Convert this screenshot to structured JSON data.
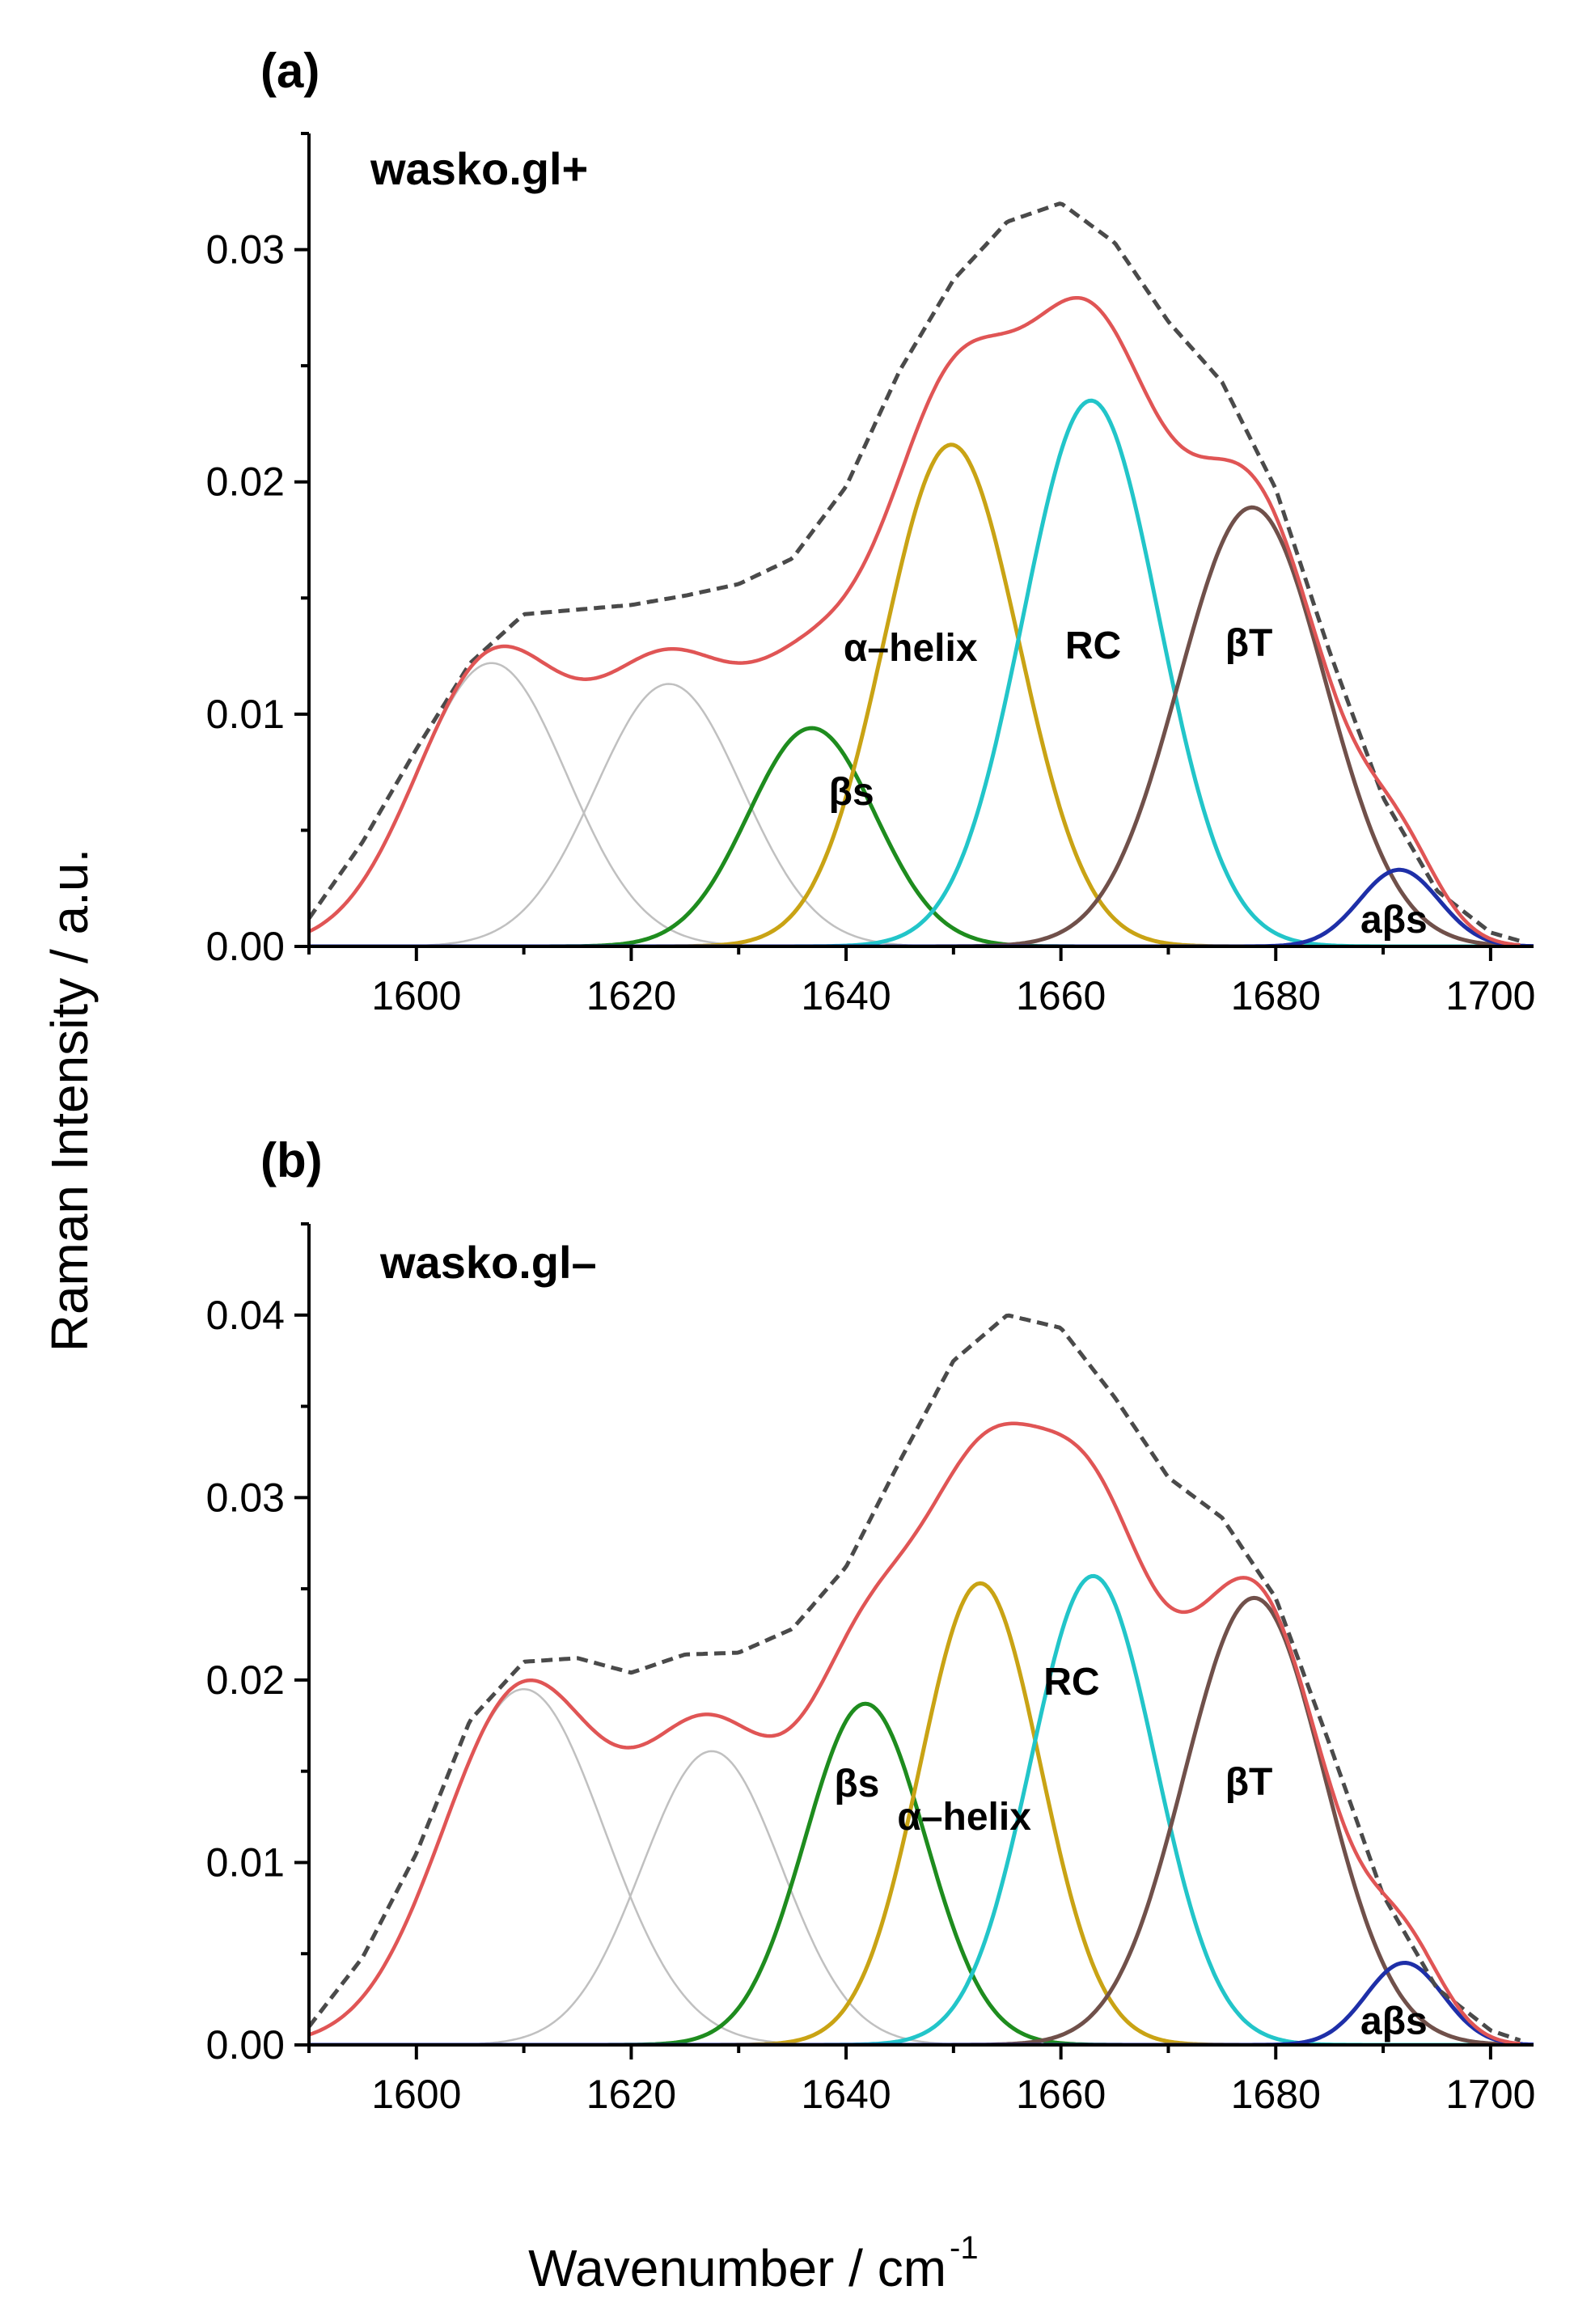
{
  "figure": {
    "ylabel": "Raman Intensity / a.u.",
    "xlabel_main": "Wavenumber / cm",
    "xlabel_sup": "-1"
  },
  "chart_data": [
    {
      "type": "line",
      "panel_label": "(a)",
      "title": "wasko.gl+",
      "xlim": [
        1590,
        1704
      ],
      "ylim": [
        0,
        0.035
      ],
      "xticks": [
        1600,
        1620,
        1640,
        1660,
        1680,
        1700
      ],
      "yticks": [
        0.0,
        0.01,
        0.02,
        0.03
      ],
      "ytick_labels": [
        "0.00",
        "0.01",
        "0.02",
        "0.03"
      ],
      "components": [
        {
          "name": "band 1607",
          "label": "",
          "color": "#c0c0c0",
          "center": 1607,
          "amplitude": 0.0122,
          "width": 7.0
        },
        {
          "name": "band 1623",
          "label": "",
          "color": "#c0c0c0",
          "center": 1623.5,
          "amplitude": 0.0113,
          "width": 6.8
        },
        {
          "name": "βs",
          "label": "βs",
          "color": "#1e8c1e",
          "center": 1636.8,
          "amplitude": 0.0094,
          "width": 5.9
        },
        {
          "name": "α-helix",
          "label": "α–helix",
          "color": "#c9a314",
          "center": 1649.8,
          "amplitude": 0.0216,
          "width": 6.3
        },
        {
          "name": "RC",
          "label": "RC",
          "color": "#22c5c9",
          "center": 1662.8,
          "amplitude": 0.0235,
          "width": 6.3
        },
        {
          "name": "βT",
          "label": "βT",
          "color": "#70504a",
          "center": 1677.8,
          "amplitude": 0.0189,
          "width": 6.8
        },
        {
          "name": "aβs",
          "label": "aβs",
          "color": "#1e2fa8",
          "center": 1691.5,
          "amplitude": 0.0033,
          "width": 3.7
        }
      ],
      "experimental": {
        "name": "measured spectrum",
        "color": "#4a4a4a",
        "style": "dashed",
        "x": [
          1590,
          1595,
          1600,
          1605,
          1610,
          1615,
          1620,
          1625,
          1630,
          1635,
          1640,
          1645,
          1650,
          1655,
          1660,
          1665,
          1670,
          1675,
          1680,
          1685,
          1690,
          1695,
          1700,
          1703
        ],
        "y": [
          0.0012,
          0.0045,
          0.0085,
          0.0122,
          0.0143,
          0.0145,
          0.0147,
          0.0151,
          0.0156,
          0.0167,
          0.0198,
          0.0248,
          0.0287,
          0.0312,
          0.032,
          0.0303,
          0.0269,
          0.0243,
          0.0197,
          0.0127,
          0.0064,
          0.0024,
          0.0006,
          0.0002
        ]
      },
      "fit": {
        "name": "cumulative fit",
        "color": "#e05555"
      },
      "annotations": [
        {
          "text": "α–helix",
          "x": 1646,
          "y": 0.0123
        },
        {
          "text": "RC",
          "x": 1663,
          "y": 0.0124
        },
        {
          "text": "βT",
          "x": 1677.5,
          "y": 0.0125
        },
        {
          "text": "βs",
          "x": 1640.5,
          "y": 0.0061
        },
        {
          "text": "aβs",
          "x": 1691,
          "y": 0.0006
        }
      ]
    },
    {
      "type": "line",
      "panel_label": "(b)",
      "title": "wasko.gl–",
      "xlim": [
        1590,
        1704
      ],
      "ylim": [
        0,
        0.045
      ],
      "xticks": [
        1600,
        1620,
        1640,
        1660,
        1680,
        1700
      ],
      "yticks": [
        0.0,
        0.01,
        0.02,
        0.03,
        0.04
      ],
      "ytick_labels": [
        "0.00",
        "0.01",
        "0.02",
        "0.03",
        "0.04"
      ],
      "components": [
        {
          "name": "band 1610",
          "label": "",
          "color": "#c0c0c0",
          "center": 1610,
          "amplitude": 0.0195,
          "width": 7.5
        },
        {
          "name": "band 1627",
          "label": "",
          "color": "#c0c0c0",
          "center": 1627.5,
          "amplitude": 0.0161,
          "width": 6.5
        },
        {
          "name": "βs",
          "label": "βs",
          "color": "#1e8c1e",
          "center": 1641.8,
          "amplitude": 0.0187,
          "width": 5.6
        },
        {
          "name": "α-helix",
          "label": "α–helix",
          "color": "#c9a314",
          "center": 1652.5,
          "amplitude": 0.0253,
          "width": 5.6
        },
        {
          "name": "RC",
          "label": "RC",
          "color": "#22c5c9",
          "center": 1663.0,
          "amplitude": 0.0257,
          "width": 5.8
        },
        {
          "name": "βT",
          "label": "βT",
          "color": "#70504a",
          "center": 1678.0,
          "amplitude": 0.0245,
          "width": 6.5
        },
        {
          "name": "aβs",
          "label": "aβs",
          "color": "#1e2fa8",
          "center": 1692.0,
          "amplitude": 0.0045,
          "width": 3.6
        }
      ],
      "experimental": {
        "name": "measured spectrum",
        "color": "#4a4a4a",
        "style": "dashed",
        "x": [
          1590,
          1595,
          1600,
          1605,
          1610,
          1615,
          1620,
          1625,
          1630,
          1635,
          1640,
          1645,
          1650,
          1655,
          1660,
          1665,
          1670,
          1675,
          1680,
          1685,
          1690,
          1695,
          1700,
          1703
        ],
        "y": [
          0.001,
          0.0048,
          0.0105,
          0.0178,
          0.021,
          0.0212,
          0.0204,
          0.0214,
          0.0215,
          0.0228,
          0.0262,
          0.032,
          0.0375,
          0.04,
          0.0393,
          0.0355,
          0.0311,
          0.0289,
          0.0245,
          0.0165,
          0.0082,
          0.0031,
          0.0008,
          0.0002
        ]
      },
      "fit": {
        "name": "cumulative fit",
        "color": "#e05555"
      },
      "annotations": [
        {
          "text": "RC",
          "x": 1661,
          "y": 0.0192
        },
        {
          "text": "βs",
          "x": 1641,
          "y": 0.0136
        },
        {
          "text": "α–helix",
          "x": 1651,
          "y": 0.0118
        },
        {
          "text": "βT",
          "x": 1677.5,
          "y": 0.0137
        },
        {
          "text": "aβs",
          "x": 1691,
          "y": 0.0006
        }
      ]
    }
  ]
}
